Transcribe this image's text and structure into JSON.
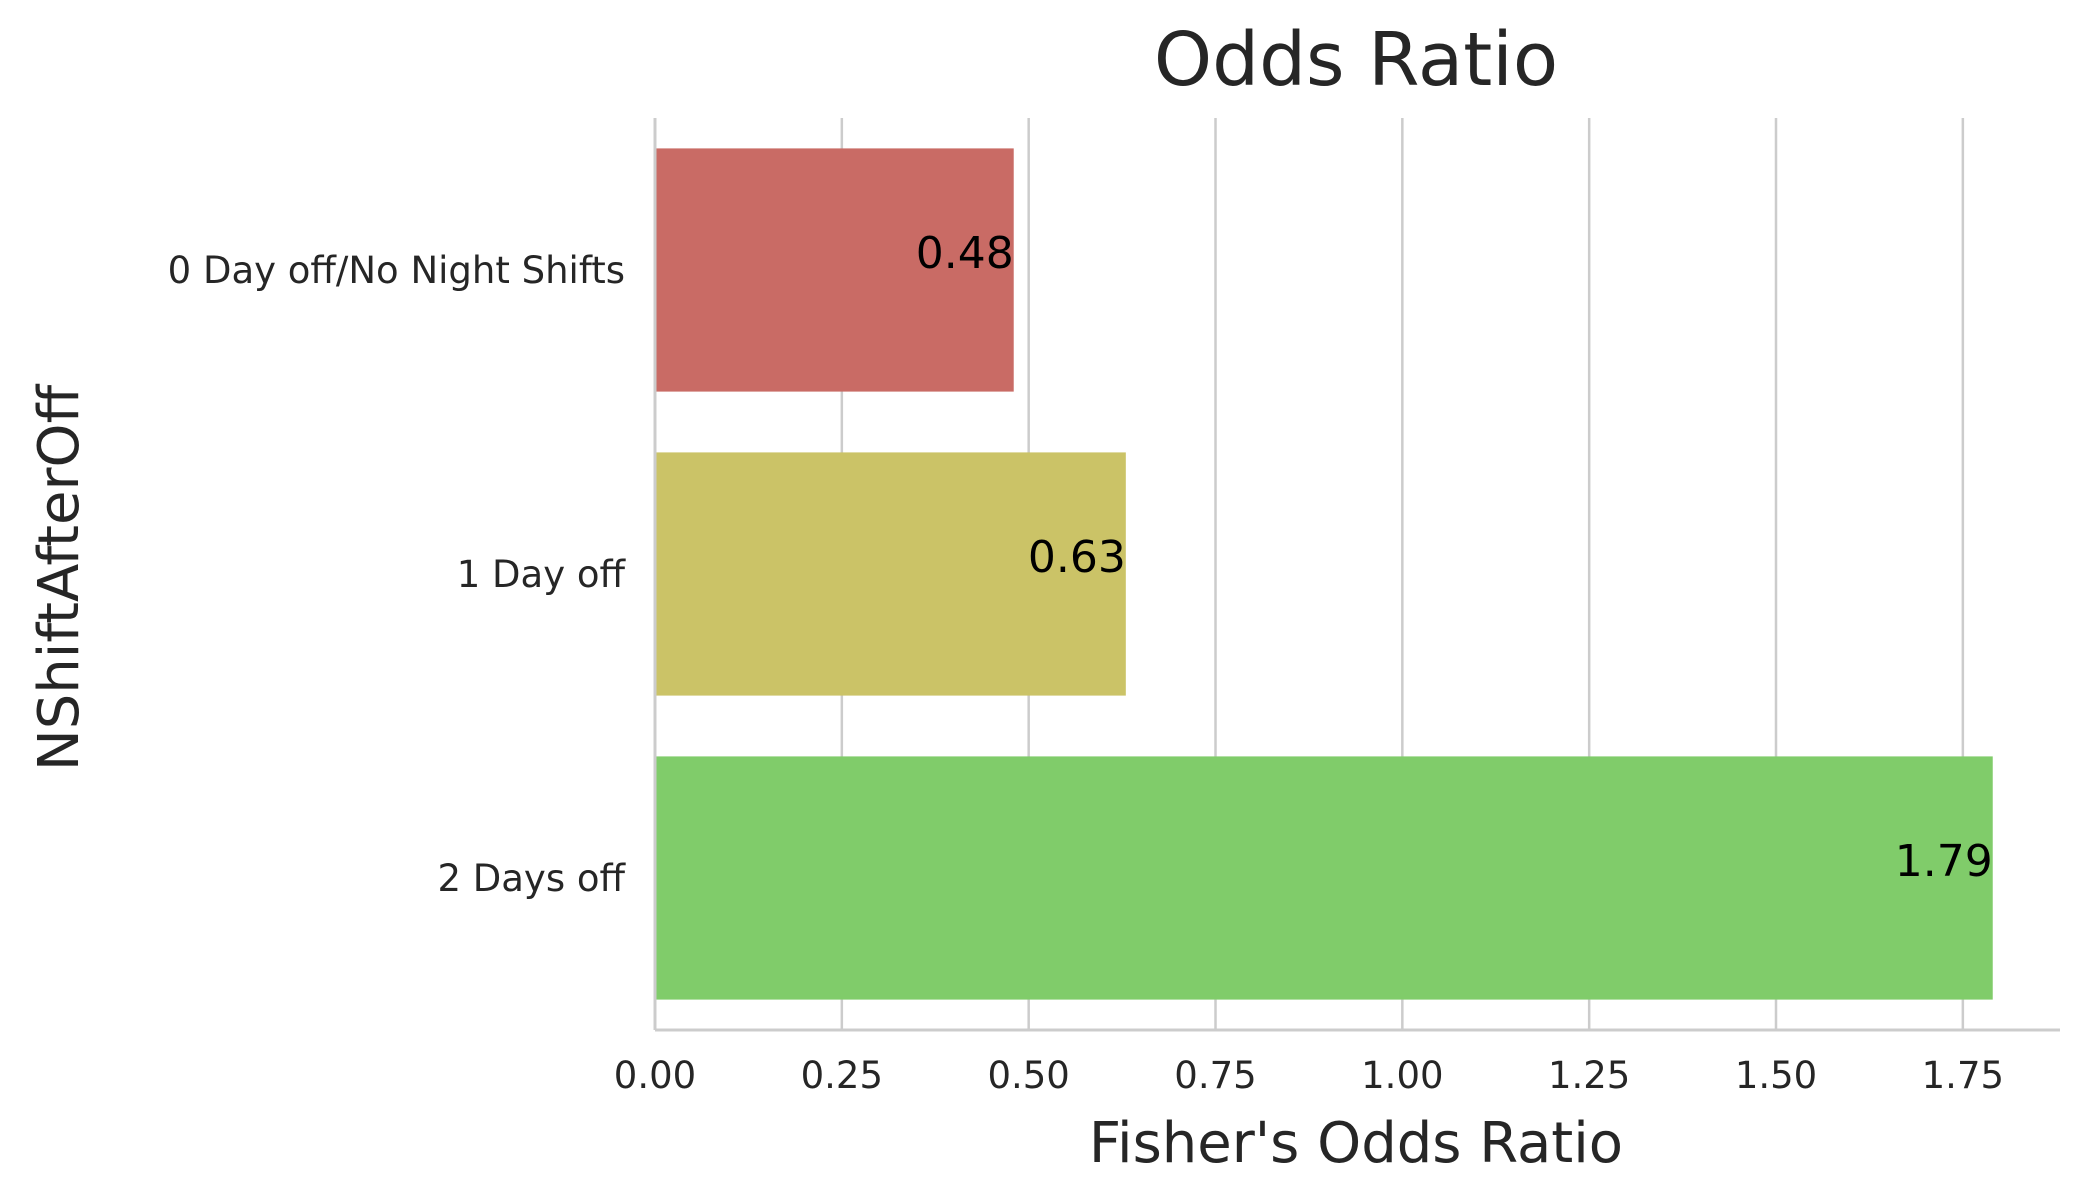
{
  "chart_data": {
    "type": "bar",
    "orientation": "horizontal",
    "title": "Odds Ratio",
    "xlabel": "Fisher's Odds Ratio",
    "ylabel": "NShiftAfterOff",
    "categories": [
      "0 Day off/No Night Shifts",
      "1 Day off",
      "2 Days off"
    ],
    "values": [
      0.48,
      0.63,
      1.79
    ],
    "data_labels": [
      "0.48",
      "0.63",
      "1.79"
    ],
    "colors": [
      "#c96b65",
      "#cbc367",
      "#80cc6a"
    ],
    "xlim": [
      0,
      1.88
    ],
    "xticks": [
      0.0,
      0.25,
      0.5,
      0.75,
      1.0,
      1.25,
      1.5,
      1.75
    ],
    "xtick_labels": [
      "0.00",
      "0.25",
      "0.50",
      "0.75",
      "1.00",
      "1.25",
      "1.50",
      "1.75"
    ],
    "grid": "vertical",
    "legend": "none"
  }
}
